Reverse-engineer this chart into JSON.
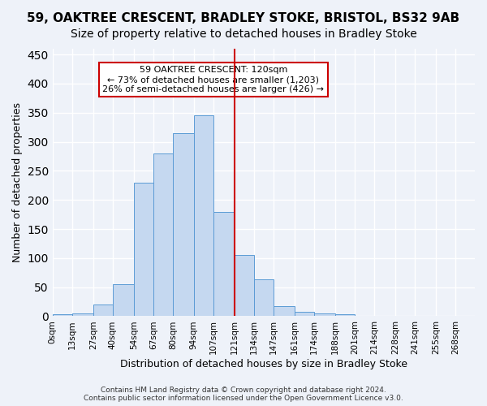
{
  "title_line1": "59, OAKTREE CRESCENT, BRADLEY STOKE, BRISTOL, BS32 9AB",
  "title_line2": "Size of property relative to detached houses in Bradley Stoke",
  "xlabel": "Distribution of detached houses by size in Bradley Stoke",
  "ylabel": "Number of detached properties",
  "footer_line1": "Contains HM Land Registry data © Crown copyright and database right 2024.",
  "footer_line2": "Contains public sector information licensed under the Open Government Licence v3.0.",
  "annotation_line1": "59 OAKTREE CRESCENT: 120sqm",
  "annotation_line2": "← 73% of detached houses are smaller (1,203)",
  "annotation_line3": "26% of semi-detached houses are larger (426) →",
  "bar_labels": [
    "0sqm",
    "13sqm",
    "27sqm",
    "40sqm",
    "54sqm",
    "67sqm",
    "80sqm",
    "94sqm",
    "107sqm",
    "121sqm",
    "134sqm",
    "147sqm",
    "161sqm",
    "174sqm",
    "188sqm",
    "201sqm",
    "214sqm",
    "228sqm",
    "241sqm",
    "255sqm",
    "268sqm"
  ],
  "bar_values": [
    3,
    5,
    20,
    55,
    230,
    280,
    315,
    345,
    180,
    105,
    63,
    18,
    8,
    5,
    3,
    0,
    0,
    0,
    0,
    0,
    0
  ],
  "bin_edges": [
    0,
    13,
    27,
    40,
    54,
    67,
    80,
    94,
    107,
    121,
    134,
    147,
    161,
    174,
    188,
    201,
    214,
    228,
    241,
    255,
    268,
    281
  ],
  "bar_color": "#c5d8f0",
  "bar_edge_color": "#5b9bd5",
  "vline_x": 121,
  "vline_color": "#cc0000",
  "ylim": [
    0,
    460
  ],
  "yticks": [
    0,
    50,
    100,
    150,
    200,
    250,
    300,
    350,
    400,
    450
  ],
  "bg_color": "#eef2f9",
  "grid_color": "#ffffff",
  "title_fontsize": 11,
  "subtitle_fontsize": 10,
  "annotation_box_edge": "#cc0000"
}
